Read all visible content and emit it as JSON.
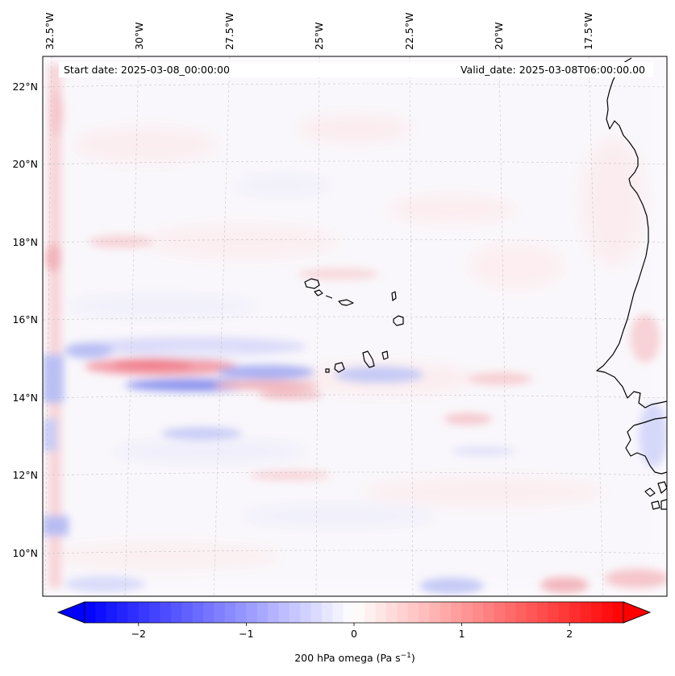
{
  "map": {
    "start_date_text": "Start date: 2025-03-08_00:00:00",
    "valid_date_text": "Valid_date: 2025-03-08T06:00:00.00",
    "lon_labels": [
      "32.5°W",
      "30°W",
      "27.5°W",
      "25°W",
      "22.5°W",
      "20°W",
      "17.5°W"
    ],
    "lat_labels": [
      "22°N",
      "20°N",
      "18°N",
      "16°N",
      "14°N",
      "12°N",
      "10°N"
    ],
    "land_outline_color": "#000000",
    "gridline_color": "#b0b0b0"
  },
  "colorbar": {
    "label_prefix": "200 hPa omega (Pa s",
    "label_exponent": "−1",
    "label_suffix": ")",
    "tick_labels": [
      "−2",
      "−1",
      "0",
      "1",
      "2"
    ],
    "tick_values": [
      -2,
      -1,
      0,
      1,
      2
    ],
    "range": [
      -2.5,
      2.5
    ],
    "colormap": "bwr",
    "min_color": "#0000ff",
    "mid_color": "#ffffff",
    "max_color": "#ff0000",
    "extend": "both"
  }
}
